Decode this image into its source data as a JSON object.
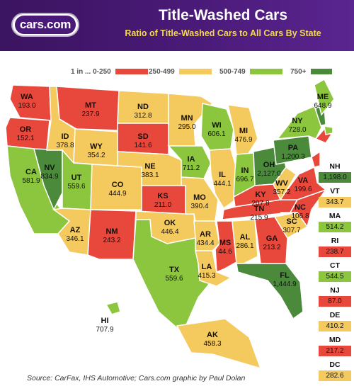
{
  "header": {
    "logo_text": "cars.com",
    "title": "Title-Washed Cars",
    "subtitle": "Ratio of Title-Washed Cars to All Cars By State"
  },
  "legend": {
    "items": [
      {
        "label": "1 in ... 0-250",
        "color": "#e8473c"
      },
      {
        "label": "250-499",
        "color": "#f4c95d"
      },
      {
        "label": "500-749",
        "color": "#8cc63f"
      },
      {
        "label": "750+",
        "color": "#4a8a3a"
      }
    ]
  },
  "colors": {
    "red": "#e8473c",
    "yellow": "#f4c95d",
    "light_green": "#8cc63f",
    "dark_green": "#4a8a3a",
    "header_purple": "#4a1a78"
  },
  "states": [
    {
      "abbr": "WA",
      "value": "193.0",
      "color": "#e8473c"
    },
    {
      "abbr": "OR",
      "value": "152.1",
      "color": "#e8473c"
    },
    {
      "abbr": "CA",
      "value": "581.9",
      "color": "#8cc63f"
    },
    {
      "abbr": "NV",
      "value": "834.9",
      "color": "#4a8a3a"
    },
    {
      "abbr": "ID",
      "value": "378.8",
      "color": "#f4c95d"
    },
    {
      "abbr": "MT",
      "value": "237.9",
      "color": "#e8473c"
    },
    {
      "abbr": "WY",
      "value": "354.2",
      "color": "#f4c95d"
    },
    {
      "abbr": "UT",
      "value": "559.6",
      "color": "#8cc63f"
    },
    {
      "abbr": "AZ",
      "value": "346.1",
      "color": "#f4c95d"
    },
    {
      "abbr": "CO",
      "value": "444.9",
      "color": "#f4c95d"
    },
    {
      "abbr": "NM",
      "value": "243.2",
      "color": "#e8473c"
    },
    {
      "abbr": "ND",
      "value": "312.8",
      "color": "#f4c95d"
    },
    {
      "abbr": "SD",
      "value": "141.6",
      "color": "#e8473c"
    },
    {
      "abbr": "NE",
      "value": "383.1",
      "color": "#f4c95d"
    },
    {
      "abbr": "KS",
      "value": "211.0",
      "color": "#e8473c"
    },
    {
      "abbr": "OK",
      "value": "446.4",
      "color": "#f4c95d"
    },
    {
      "abbr": "TX",
      "value": "559.6",
      "color": "#8cc63f"
    },
    {
      "abbr": "MN",
      "value": "295.0",
      "color": "#f4c95d"
    },
    {
      "abbr": "IA",
      "value": "711.2",
      "color": "#8cc63f"
    },
    {
      "abbr": "MO",
      "value": "390.4",
      "color": "#f4c95d"
    },
    {
      "abbr": "AR",
      "value": "434.4",
      "color": "#f4c95d"
    },
    {
      "abbr": "LA",
      "value": "415.3",
      "color": "#f4c95d"
    },
    {
      "abbr": "WI",
      "value": "606.1",
      "color": "#8cc63f"
    },
    {
      "abbr": "IL",
      "value": "444.1",
      "color": "#f4c95d"
    },
    {
      "abbr": "MI",
      "value": "476.9",
      "color": "#f4c95d"
    },
    {
      "abbr": "IN",
      "value": "696.7",
      "color": "#8cc63f"
    },
    {
      "abbr": "OH",
      "value": "2,127.0",
      "color": "#4a8a3a"
    },
    {
      "abbr": "KY",
      "value": "207.8",
      "color": "#e8473c"
    },
    {
      "abbr": "TN",
      "value": "215.9",
      "color": "#e8473c"
    },
    {
      "abbr": "MS",
      "value": "44.6",
      "color": "#e8473c"
    },
    {
      "abbr": "AL",
      "value": "286.1",
      "color": "#f4c95d"
    },
    {
      "abbr": "GA",
      "value": "213.2",
      "color": "#e8473c"
    },
    {
      "abbr": "FL",
      "value": "1,444.9",
      "color": "#4a8a3a"
    },
    {
      "abbr": "SC",
      "value": "307.7",
      "color": "#f4c95d"
    },
    {
      "abbr": "NC",
      "value": "106.8",
      "color": "#e8473c"
    },
    {
      "abbr": "VA",
      "value": "199.6",
      "color": "#e8473c"
    },
    {
      "abbr": "WV",
      "value": "357.2",
      "color": "#f4c95d"
    },
    {
      "abbr": "PA",
      "value": "1,200.3",
      "color": "#4a8a3a"
    },
    {
      "abbr": "NY",
      "value": "728.0",
      "color": "#8cc63f"
    },
    {
      "abbr": "ME",
      "value": "648.9",
      "color": "#8cc63f"
    },
    {
      "abbr": "AK",
      "value": "458.3",
      "color": "#f4c95d"
    },
    {
      "abbr": "HI",
      "value": "707.9",
      "color": "#8cc63f"
    }
  ],
  "side_states": [
    {
      "abbr": "NH",
      "value": "1,198.0",
      "color": "#4a8a3a"
    },
    {
      "abbr": "VT",
      "value": "343.7",
      "color": "#f4c95d"
    },
    {
      "abbr": "MA",
      "value": "514.2",
      "color": "#8cc63f"
    },
    {
      "abbr": "RI",
      "value": "238.7",
      "color": "#e8473c"
    },
    {
      "abbr": "CT",
      "value": "544.5",
      "color": "#8cc63f"
    },
    {
      "abbr": "NJ",
      "value": "87.0",
      "color": "#e8473c"
    },
    {
      "abbr": "DE",
      "value": "410.2",
      "color": "#f4c95d"
    },
    {
      "abbr": "MD",
      "value": "217.2",
      "color": "#e8473c"
    },
    {
      "abbr": "DC",
      "value": "282.6",
      "color": "#f4c95d"
    }
  ],
  "source": "Source: CarFax, IHS Automotive; Cars.com graphic by Paul Dolan"
}
